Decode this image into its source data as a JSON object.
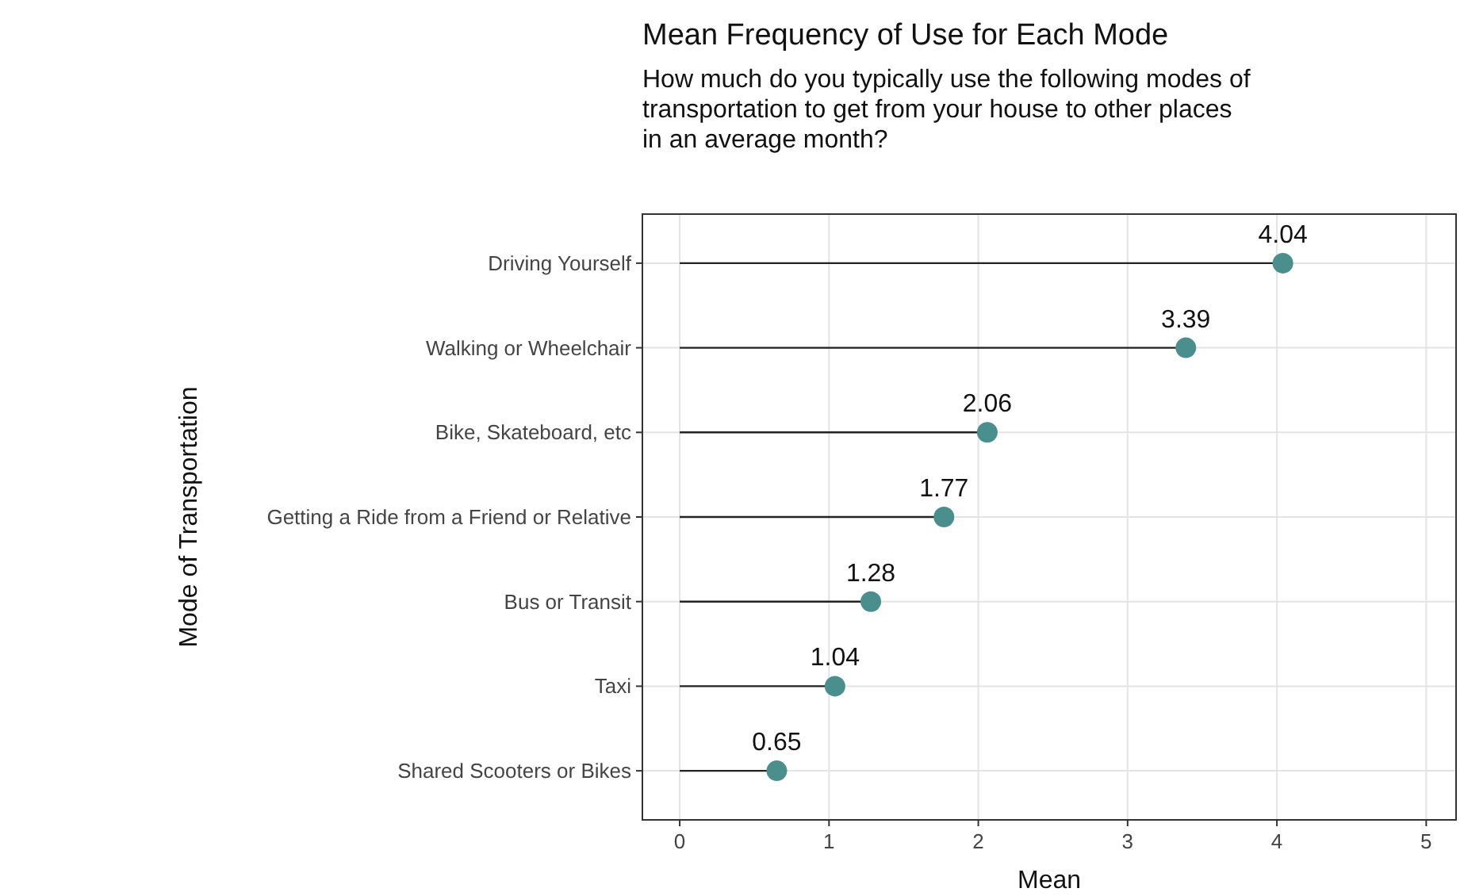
{
  "chart_data": {
    "type": "lollipop",
    "orientation": "horizontal",
    "title": "Mean Frequency of Use for Each Mode",
    "subtitle": "How much do you typically use the following modes of transportation to get from your house to other places in an average month?",
    "xlabel": "Mean",
    "ylabel": "Mode of Transportation",
    "categories": [
      "Driving Yourself",
      "Walking or Wheelchair",
      "Bike, Skateboard, etc",
      "Getting a Ride from a Friend or Relative",
      "Bus or Transit",
      "Taxi",
      "Shared Scooters or Bikes"
    ],
    "values": [
      4.04,
      3.39,
      2.06,
      1.77,
      1.28,
      1.04,
      0.65
    ],
    "color": "#4a8e8e",
    "data_labels": true,
    "xlim": [
      -0.25,
      5.2
    ],
    "xticks": [
      0,
      1,
      2,
      3,
      4,
      5
    ],
    "grid": true
  }
}
